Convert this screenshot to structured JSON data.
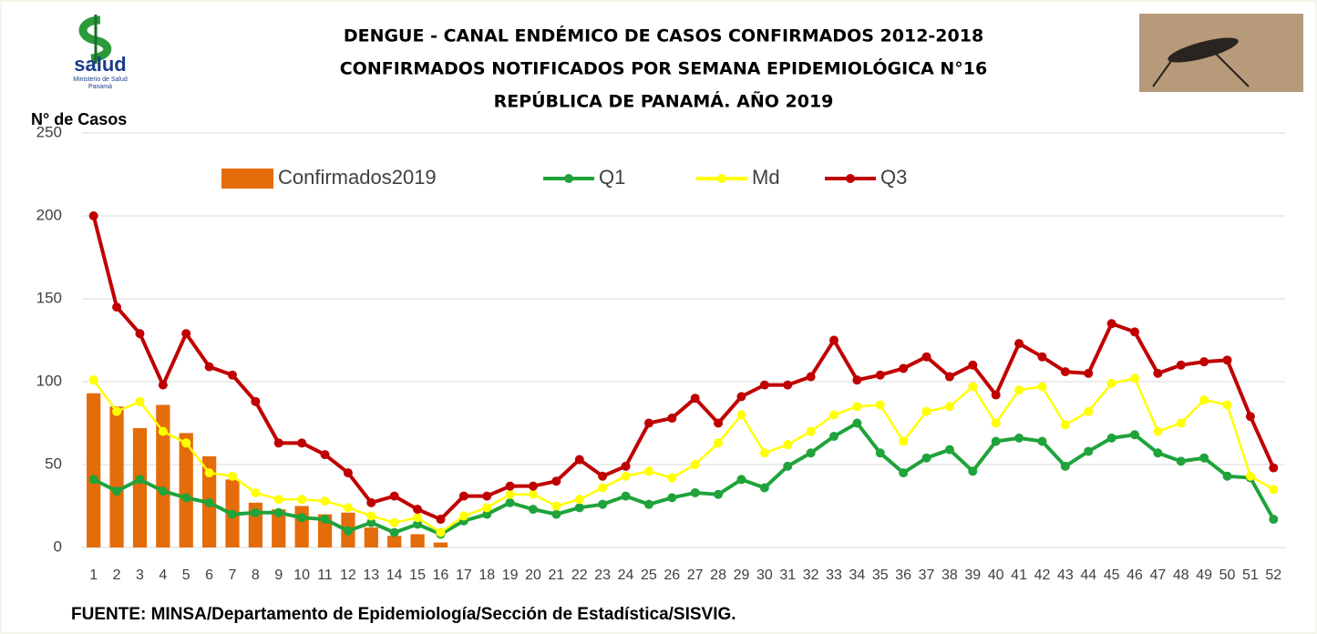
{
  "logo": {
    "name": "salud",
    "line1": "Ministerio de Salud",
    "line2": "Panamá"
  },
  "chart_data": {
    "type": "bar",
    "title": [
      "DENGUE - CANAL ENDÉMICO DE CASOS CONFIRMADOS 2012-2018",
      "CONFIRMADOS NOTIFICADOS POR SEMANA EPIDEMIOLÓGICA N°16",
      "REPÚBLICA DE PANAMÁ. AÑO 2019"
    ],
    "y_label": "N° de Casos",
    "source": "FUENTE: MINSA/Departamento de Epidemiología/Sección de Estadística/SISVIG.",
    "categories": [
      "1",
      "2",
      "3",
      "4",
      "5",
      "6",
      "7",
      "8",
      "9",
      "10",
      "11",
      "12",
      "13",
      "14",
      "15",
      "16",
      "17",
      "18",
      "19",
      "20",
      "21",
      "22",
      "23",
      "24",
      "25",
      "26",
      "27",
      "28",
      "29",
      "30",
      "31",
      "32",
      "33",
      "34",
      "35",
      "36",
      "37",
      "38",
      "39",
      "40",
      "41",
      "42",
      "43",
      "44",
      "45",
      "46",
      "47",
      "48",
      "49",
      "50",
      "51",
      "52"
    ],
    "ylim": [
      0,
      250
    ],
    "yticks": [
      0,
      50,
      100,
      150,
      200,
      250
    ],
    "grid": true,
    "legend": "top",
    "series": [
      {
        "name": "Confirmados2019",
        "type": "bar",
        "color": "#e46c0a",
        "values": [
          93,
          85,
          72,
          86,
          69,
          55,
          41,
          27,
          23,
          25,
          20,
          21,
          12,
          7,
          8,
          3,
          null,
          null,
          null,
          null,
          null,
          null,
          null,
          null,
          null,
          null,
          null,
          null,
          null,
          null,
          null,
          null,
          null,
          null,
          null,
          null,
          null,
          null,
          null,
          null,
          null,
          null,
          null,
          null,
          null,
          null,
          null,
          null,
          null,
          null,
          null,
          null
        ]
      },
      {
        "name": "Q1",
        "type": "line",
        "color": "#1fa33a",
        "values": [
          41,
          34,
          41,
          34,
          30,
          27,
          20,
          21,
          21,
          18,
          17,
          10,
          15,
          9,
          14,
          8,
          16,
          20,
          27,
          23,
          20,
          24,
          26,
          31,
          26,
          30,
          33,
          32,
          41,
          36,
          49,
          57,
          67,
          75,
          57,
          45,
          54,
          59,
          46,
          64,
          66,
          64,
          49,
          58,
          66,
          68,
          57,
          52,
          54,
          43,
          42,
          17
        ]
      },
      {
        "name": "Md",
        "type": "line",
        "color": "#ffff00",
        "values": [
          101,
          82,
          88,
          70,
          63,
          45,
          43,
          33,
          29,
          29,
          28,
          24,
          19,
          15,
          18,
          9,
          19,
          24,
          32,
          32,
          25,
          29,
          36,
          43,
          46,
          42,
          50,
          63,
          80,
          57,
          62,
          70,
          80,
          85,
          86,
          64,
          82,
          85,
          97,
          75,
          95,
          97,
          74,
          82,
          99,
          102,
          70,
          75,
          89,
          86,
          43,
          35
        ]
      },
      {
        "name": "Q3",
        "type": "line",
        "color": "#c00000",
        "values": [
          200,
          145,
          129,
          98,
          129,
          109,
          104,
          88,
          63,
          63,
          56,
          45,
          27,
          31,
          23,
          17,
          31,
          31,
          37,
          37,
          40,
          53,
          43,
          49,
          75,
          78,
          90,
          75,
          91,
          98,
          98,
          103,
          125,
          101,
          104,
          108,
          115,
          103,
          110,
          92,
          123,
          115,
          106,
          105,
          135,
          130,
          105,
          110,
          112,
          113,
          79,
          48
        ]
      }
    ]
  }
}
